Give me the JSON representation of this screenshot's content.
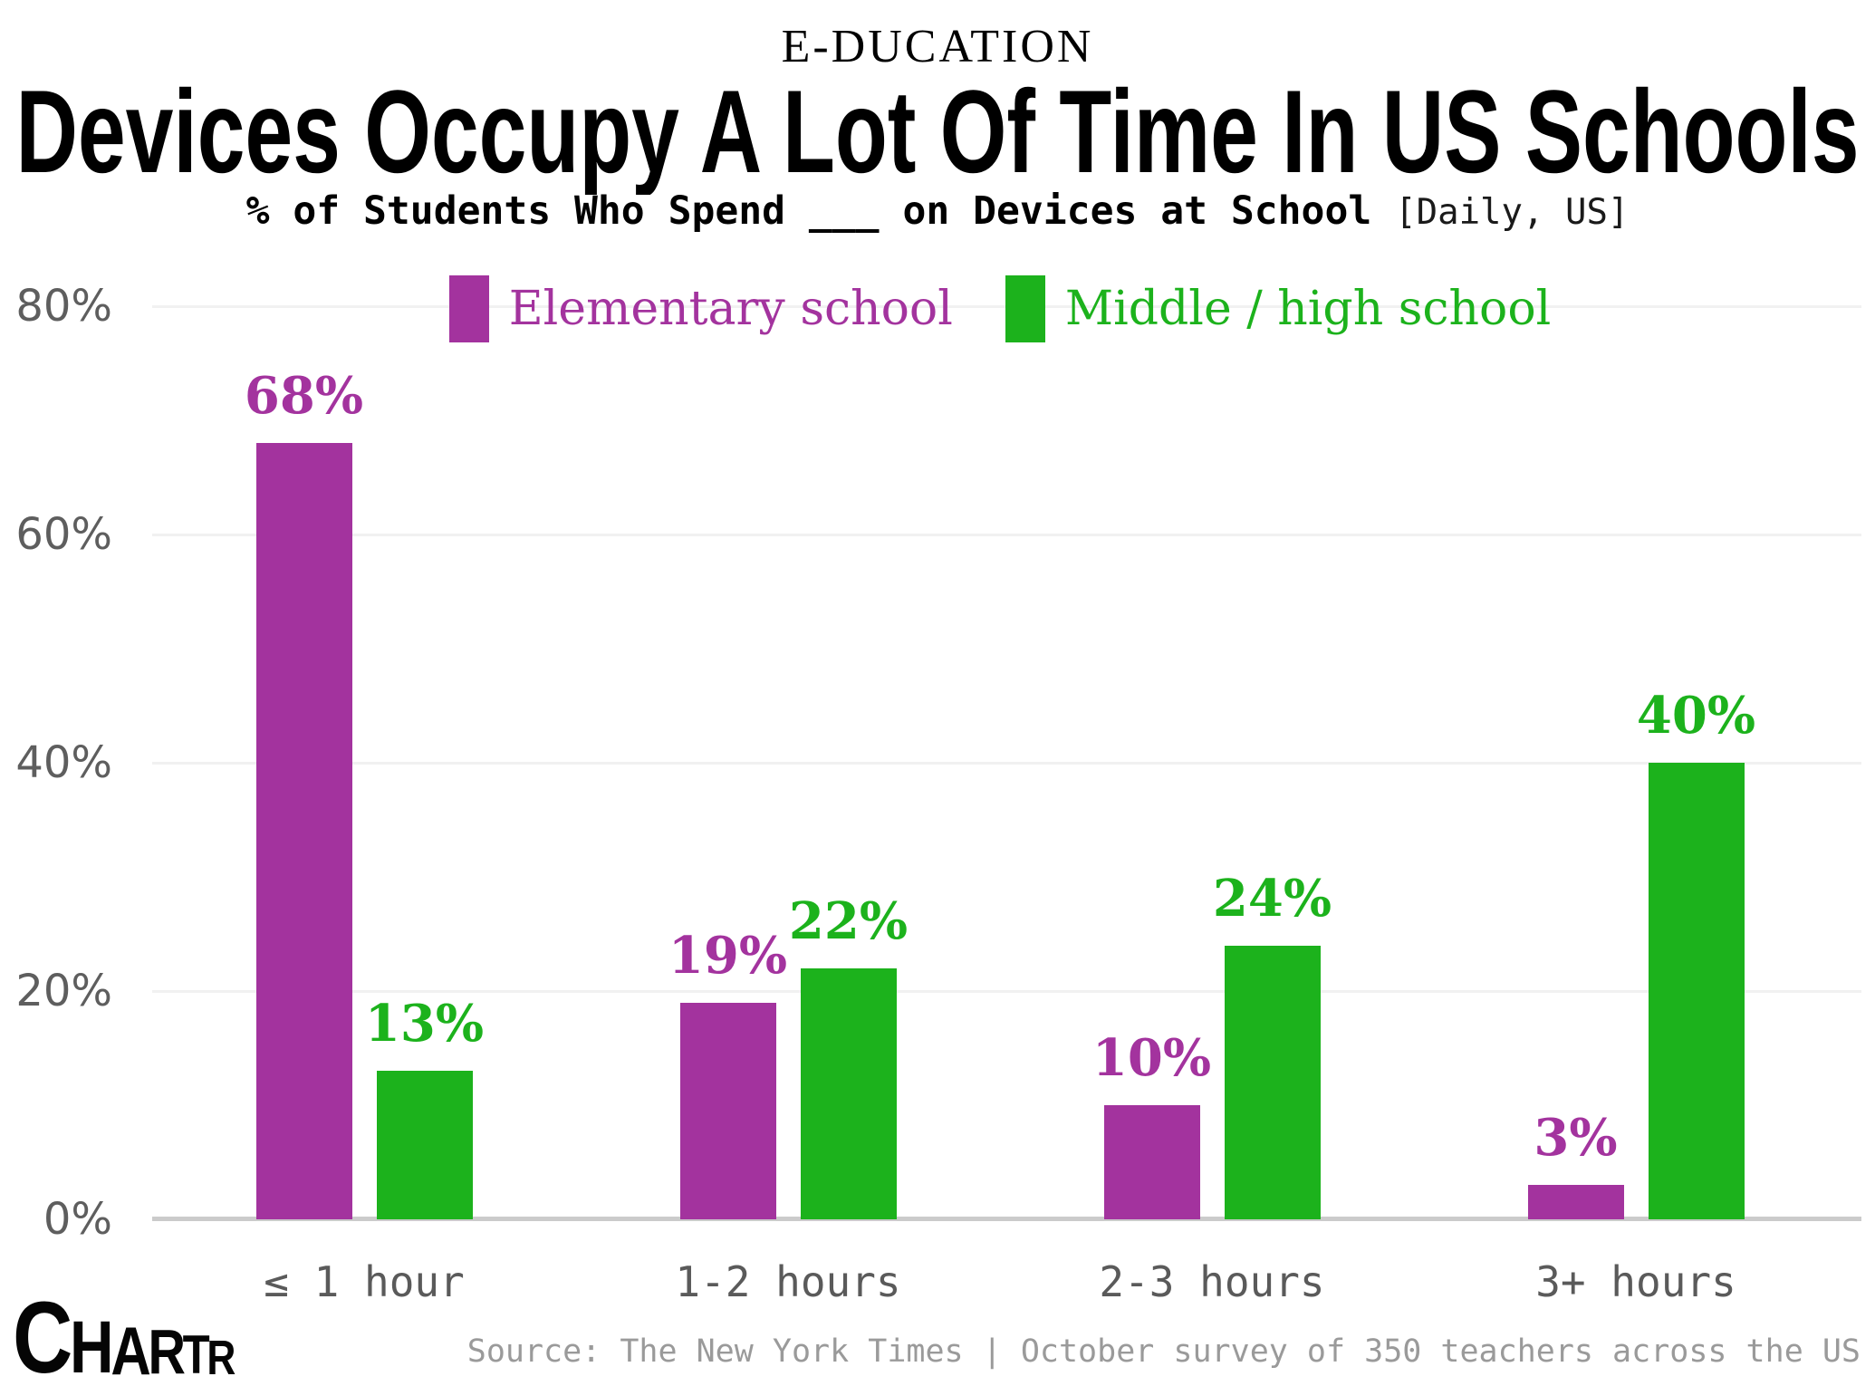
{
  "kicker": "E-DUCATION",
  "title": "Devices Occupy A Lot Of Time In US Schools",
  "subtitle": {
    "main": "% of Students Who Spend ___ on Devices at School",
    "note": "[Daily, US]"
  },
  "chart_data": {
    "type": "bar",
    "categories": [
      "≤ 1 hour",
      "1-2 hours",
      "2-3 hours",
      "3+ hours"
    ],
    "series": [
      {
        "name": "Elementary school",
        "color": "#a3339e",
        "values": [
          68,
          19,
          10,
          3
        ],
        "labels": [
          "68%",
          "19%",
          "10%",
          "3%"
        ]
      },
      {
        "name": "Middle / high school",
        "color": "#1cb21c",
        "values": [
          13,
          22,
          24,
          40
        ],
        "labels": [
          "13%",
          "22%",
          "24%",
          "40%"
        ]
      }
    ],
    "yticks": [
      0,
      20,
      40,
      60,
      80
    ],
    "ytick_labels": [
      "0%",
      "20%",
      "40%",
      "60%",
      "80%"
    ],
    "ylim": [
      0,
      80
    ],
    "grid": true,
    "legend_position": "top",
    "data_labels": true
  },
  "source": "Source: The New York Times | October survey of 350 teachers across the US",
  "logo": {
    "text": "CHARTR"
  }
}
